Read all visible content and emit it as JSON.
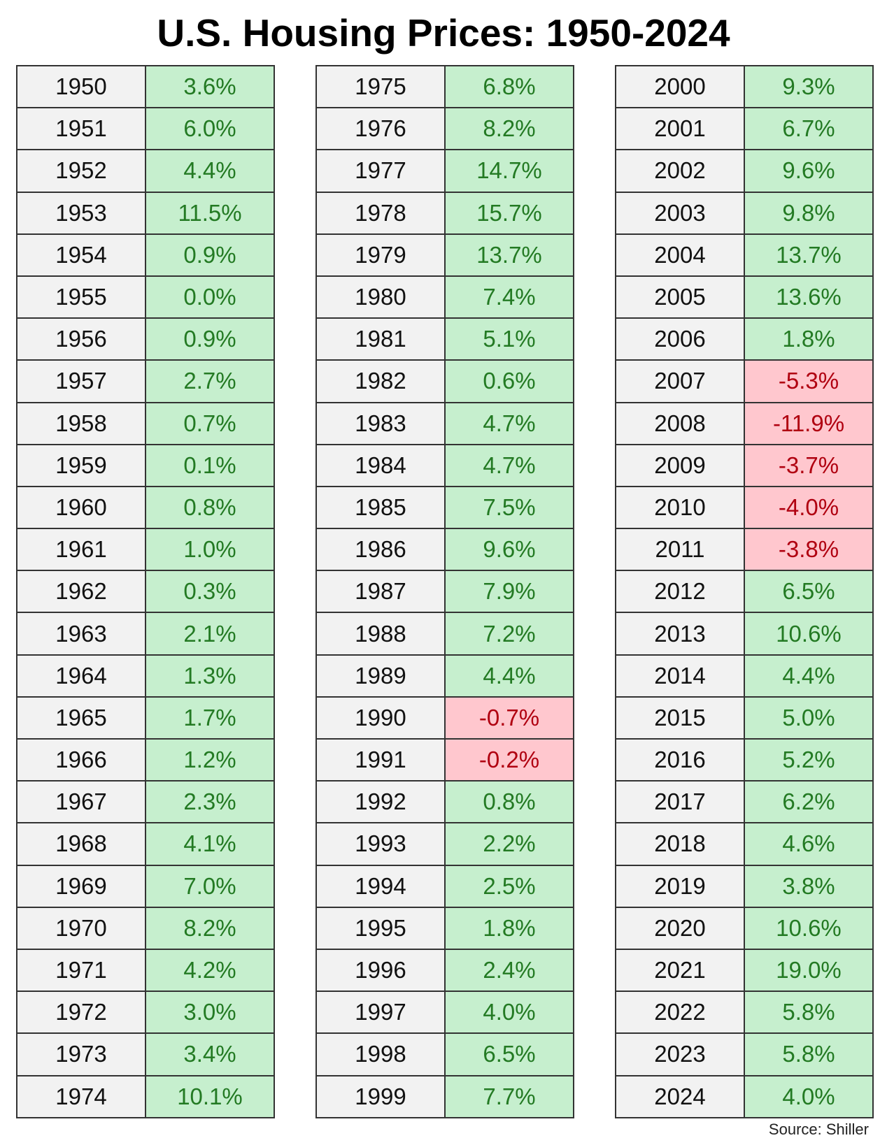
{
  "title": "U.S. Housing Prices: 1950-2024",
  "tables": [
    {
      "rows": [
        [
          "1950",
          "3.6%"
        ],
        [
          "1951",
          "6.0%"
        ],
        [
          "1952",
          "4.4%"
        ],
        [
          "1953",
          "11.5%"
        ],
        [
          "1954",
          "0.9%"
        ],
        [
          "1955",
          "0.0%"
        ],
        [
          "1956",
          "0.9%"
        ],
        [
          "1957",
          "2.7%"
        ],
        [
          "1958",
          "0.7%"
        ],
        [
          "1959",
          "0.1%"
        ],
        [
          "1960",
          "0.8%"
        ],
        [
          "1961",
          "1.0%"
        ],
        [
          "1962",
          "0.3%"
        ],
        [
          "1963",
          "2.1%"
        ],
        [
          "1964",
          "1.3%"
        ],
        [
          "1965",
          "1.7%"
        ],
        [
          "1966",
          "1.2%"
        ],
        [
          "1967",
          "2.3%"
        ],
        [
          "1968",
          "4.1%"
        ],
        [
          "1969",
          "7.0%"
        ],
        [
          "1970",
          "8.2%"
        ],
        [
          "1971",
          "4.2%"
        ],
        [
          "1972",
          "3.0%"
        ],
        [
          "1973",
          "3.4%"
        ],
        [
          "1974",
          "10.1%"
        ]
      ]
    },
    {
      "rows": [
        [
          "1975",
          "6.8%"
        ],
        [
          "1976",
          "8.2%"
        ],
        [
          "1977",
          "14.7%"
        ],
        [
          "1978",
          "15.7%"
        ],
        [
          "1979",
          "13.7%"
        ],
        [
          "1980",
          "7.4%"
        ],
        [
          "1981",
          "5.1%"
        ],
        [
          "1982",
          "0.6%"
        ],
        [
          "1983",
          "4.7%"
        ],
        [
          "1984",
          "4.7%"
        ],
        [
          "1985",
          "7.5%"
        ],
        [
          "1986",
          "9.6%"
        ],
        [
          "1987",
          "7.9%"
        ],
        [
          "1988",
          "7.2%"
        ],
        [
          "1989",
          "4.4%"
        ],
        [
          "1990",
          "-0.7%"
        ],
        [
          "1991",
          "-0.2%"
        ],
        [
          "1992",
          "0.8%"
        ],
        [
          "1993",
          "2.2%"
        ],
        [
          "1994",
          "2.5%"
        ],
        [
          "1995",
          "1.8%"
        ],
        [
          "1996",
          "2.4%"
        ],
        [
          "1997",
          "4.0%"
        ],
        [
          "1998",
          "6.5%"
        ],
        [
          "1999",
          "7.7%"
        ]
      ]
    },
    {
      "rows": [
        [
          "2000",
          "9.3%"
        ],
        [
          "2001",
          "6.7%"
        ],
        [
          "2002",
          "9.6%"
        ],
        [
          "2003",
          "9.8%"
        ],
        [
          "2004",
          "13.7%"
        ],
        [
          "2005",
          "13.6%"
        ],
        [
          "2006",
          "1.8%"
        ],
        [
          "2007",
          "-5.3%"
        ],
        [
          "2008",
          "-11.9%"
        ],
        [
          "2009",
          "-3.7%"
        ],
        [
          "2010",
          "-4.0%"
        ],
        [
          "2011",
          "-3.8%"
        ],
        [
          "2012",
          "6.5%"
        ],
        [
          "2013",
          "10.6%"
        ],
        [
          "2014",
          "4.4%"
        ],
        [
          "2015",
          "5.0%"
        ],
        [
          "2016",
          "5.2%"
        ],
        [
          "2017",
          "6.2%"
        ],
        [
          "2018",
          "4.6%"
        ],
        [
          "2019",
          "3.8%"
        ],
        [
          "2020",
          "10.6%"
        ],
        [
          "2021",
          "19.0%"
        ],
        [
          "2022",
          "5.8%"
        ],
        [
          "2023",
          "5.8%"
        ],
        [
          "2024",
          "4.0%"
        ]
      ]
    }
  ],
  "source": "Source: Shiller"
}
